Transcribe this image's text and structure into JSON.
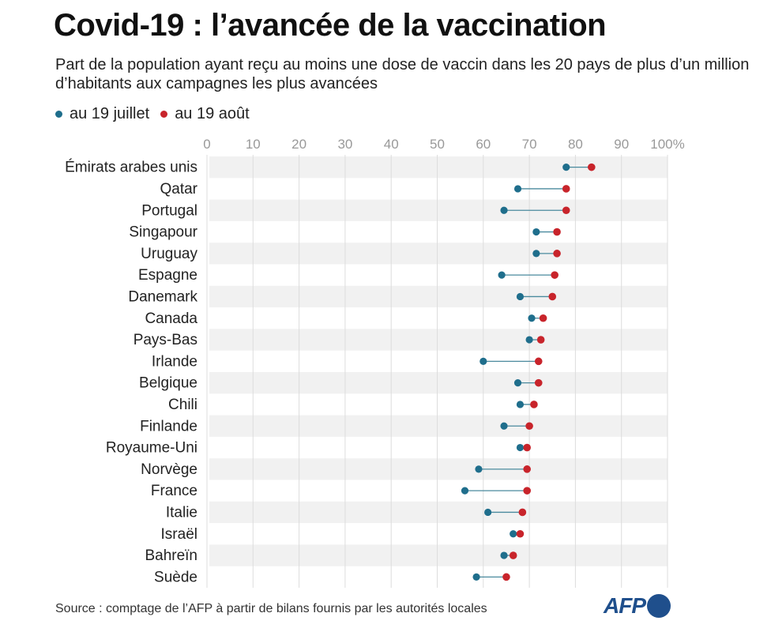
{
  "title": "Covid-19 : l’avancée de la vaccination",
  "subtitle": "Part de la population ayant reçu au moins une dose de vaccin dans les 20 pays de plus d’un million d’habitants aux campagnes les plus avancées",
  "legend": {
    "july": "au 19 juillet",
    "august": "au 19 août"
  },
  "source": "Source : comptage de l’AFP à partir de bilans fournis par les autorités locales",
  "logo": "AFP",
  "colors": {
    "july": "#1f6e8c",
    "august": "#c8242b",
    "connector": "#4a8a9e",
    "band": "#f1f1f1",
    "grid": "#dddddd",
    "tick": "#999999",
    "logo": "#1f4f8c"
  },
  "chart_data": {
    "type": "dot-plot",
    "title": "Covid-19 : l’avancée de la vaccination",
    "xlim": [
      0,
      100
    ],
    "x_ticks": [
      0,
      10,
      20,
      30,
      40,
      50,
      60,
      70,
      80,
      90,
      100
    ],
    "x_tick_labels": [
      "0",
      "10",
      "20",
      "30",
      "40",
      "50",
      "60",
      "70",
      "80",
      "90",
      "100%"
    ],
    "categories": [
      "Émirats arabes unis",
      "Qatar",
      "Portugal",
      "Singapour",
      "Uruguay",
      "Espagne",
      "Danemark",
      "Canada",
      "Pays-Bas",
      "Irlande",
      "Belgique",
      "Chili",
      "Finlande",
      "Royaume-Uni",
      "Norvège",
      "France",
      "Italie",
      "Israël",
      "Bahreïn",
      "Suède"
    ],
    "series": [
      {
        "name": "au 19 juillet",
        "values": [
          78,
          67.5,
          64.5,
          71.5,
          71.5,
          64,
          68,
          70.5,
          70,
          60,
          67.5,
          68,
          64.5,
          68,
          59,
          56,
          61,
          66.5,
          64.5,
          58.5
        ]
      },
      {
        "name": "au 19 août",
        "values": [
          83.5,
          78,
          78,
          76,
          76,
          75.5,
          75,
          73,
          72.5,
          72,
          72,
          71,
          70,
          69.5,
          69.5,
          69.5,
          68.5,
          68,
          66.5,
          65
        ]
      }
    ]
  }
}
